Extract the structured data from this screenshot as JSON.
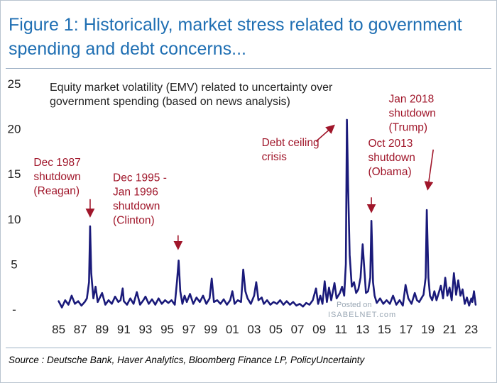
{
  "figure": {
    "title": "Figure 1: Historically, market stress related to government\nspending and debt concerns...",
    "source": "Source : Deutsche Bank, Haver Analytics, Bloomberg Finance LP, PolicyUncertainty",
    "watermark": {
      "posted": "Posted on",
      "site": "ISABELNET.com"
    }
  },
  "colors": {
    "title": "#1f6fb3",
    "series": "#1a1a7a",
    "annotation": "#a0162a",
    "rule": "#9fb2c6"
  },
  "chart_data": {
    "type": "line",
    "subtitle": "Equity market volatility (EMV) related to uncertainty over\ngovernment spending (based on news analysis)",
    "ylim": [
      0,
      25
    ],
    "yticks": [
      "-",
      "5",
      "10",
      "15",
      "20",
      "25"
    ],
    "ytick_values": [
      0,
      5,
      10,
      15,
      20,
      25
    ],
    "xlim": [
      1984.7,
      2023.8
    ],
    "xtick_labels": [
      "85",
      "87",
      "89",
      "91",
      "93",
      "95",
      "97",
      "99",
      "01",
      "03",
      "05",
      "07",
      "09",
      "11",
      "13",
      "15",
      "17",
      "19",
      "21",
      "23"
    ],
    "xtick_values": [
      1985,
      1987,
      1989,
      1991,
      1993,
      1995,
      1997,
      1999,
      2001,
      2003,
      2005,
      2007,
      2009,
      2011,
      2013,
      2015,
      2017,
      2019,
      2021,
      2023
    ],
    "grid": false,
    "legend": "none",
    "series": [
      {
        "name": "EMV government spending",
        "points": [
          [
            1985.0,
            0.9
          ],
          [
            1985.3,
            0.2
          ],
          [
            1985.6,
            1.0
          ],
          [
            1985.9,
            0.5
          ],
          [
            1986.2,
            1.5
          ],
          [
            1986.5,
            0.6
          ],
          [
            1986.8,
            0.9
          ],
          [
            1987.1,
            0.4
          ],
          [
            1987.4,
            0.8
          ],
          [
            1987.6,
            1.2
          ],
          [
            1987.8,
            3.0
          ],
          [
            1987.9,
            9.2
          ],
          [
            1988.0,
            4.0
          ],
          [
            1988.2,
            1.2
          ],
          [
            1988.4,
            2.5
          ],
          [
            1988.6,
            0.8
          ],
          [
            1988.8,
            1.3
          ],
          [
            1989.0,
            1.8
          ],
          [
            1989.3,
            0.5
          ],
          [
            1989.6,
            1.0
          ],
          [
            1989.9,
            0.6
          ],
          [
            1990.2,
            1.4
          ],
          [
            1990.5,
            0.8
          ],
          [
            1990.7,
            1.0
          ],
          [
            1990.9,
            2.3
          ],
          [
            1991.0,
            0.9
          ],
          [
            1991.3,
            0.5
          ],
          [
            1991.6,
            1.2
          ],
          [
            1991.9,
            0.6
          ],
          [
            1992.2,
            1.9
          ],
          [
            1992.5,
            0.5
          ],
          [
            1992.8,
            1.0
          ],
          [
            1993.0,
            1.4
          ],
          [
            1993.3,
            0.6
          ],
          [
            1993.6,
            1.1
          ],
          [
            1993.9,
            0.5
          ],
          [
            1994.2,
            1.2
          ],
          [
            1994.5,
            0.6
          ],
          [
            1994.8,
            1.0
          ],
          [
            1995.1,
            0.7
          ],
          [
            1995.4,
            1.0
          ],
          [
            1995.7,
            0.5
          ],
          [
            1995.9,
            3.1
          ],
          [
            1996.05,
            5.4
          ],
          [
            1996.2,
            2.0
          ],
          [
            1996.4,
            0.6
          ],
          [
            1996.6,
            1.5
          ],
          [
            1996.8,
            0.8
          ],
          [
            1997.1,
            1.7
          ],
          [
            1997.4,
            0.6
          ],
          [
            1997.7,
            1.3
          ],
          [
            1998.0,
            0.8
          ],
          [
            1998.3,
            1.5
          ],
          [
            1998.6,
            0.6
          ],
          [
            1998.9,
            1.2
          ],
          [
            1999.1,
            3.4
          ],
          [
            1999.3,
            0.8
          ],
          [
            1999.6,
            1.0
          ],
          [
            1999.9,
            0.6
          ],
          [
            2000.2,
            1.1
          ],
          [
            2000.5,
            0.5
          ],
          [
            2000.8,
            1.0
          ],
          [
            2001.0,
            2.0
          ],
          [
            2001.2,
            0.6
          ],
          [
            2001.5,
            1.0
          ],
          [
            2001.8,
            0.8
          ],
          [
            2002.0,
            4.4
          ],
          [
            2002.2,
            2.0
          ],
          [
            2002.4,
            1.2
          ],
          [
            2002.7,
            0.6
          ],
          [
            2003.0,
            1.5
          ],
          [
            2003.2,
            3.0
          ],
          [
            2003.4,
            1.0
          ],
          [
            2003.7,
            1.3
          ],
          [
            2003.9,
            0.6
          ],
          [
            2004.2,
            1.0
          ],
          [
            2004.5,
            0.5
          ],
          [
            2004.8,
            0.8
          ],
          [
            2005.1,
            0.6
          ],
          [
            2005.4,
            1.0
          ],
          [
            2005.7,
            0.5
          ],
          [
            2006.0,
            0.9
          ],
          [
            2006.3,
            0.5
          ],
          [
            2006.6,
            0.8
          ],
          [
            2006.9,
            0.4
          ],
          [
            2007.2,
            0.6
          ],
          [
            2007.5,
            0.3
          ],
          [
            2007.8,
            0.7
          ],
          [
            2008.1,
            0.5
          ],
          [
            2008.4,
            1.0
          ],
          [
            2008.7,
            2.3
          ],
          [
            2008.9,
            0.6
          ],
          [
            2009.1,
            1.5
          ],
          [
            2009.3,
            0.6
          ],
          [
            2009.5,
            3.1
          ],
          [
            2009.7,
            0.8
          ],
          [
            2009.9,
            2.4
          ],
          [
            2010.1,
            1.0
          ],
          [
            2010.4,
            2.9
          ],
          [
            2010.6,
            1.2
          ],
          [
            2010.9,
            1.8
          ],
          [
            2011.1,
            2.5
          ],
          [
            2011.3,
            1.5
          ],
          [
            2011.45,
            5.0
          ],
          [
            2011.55,
            21.0
          ],
          [
            2011.65,
            14.0
          ],
          [
            2011.8,
            6.0
          ],
          [
            2012.0,
            2.5
          ],
          [
            2012.2,
            3.0
          ],
          [
            2012.4,
            1.8
          ],
          [
            2012.6,
            2.2
          ],
          [
            2012.8,
            3.5
          ],
          [
            2013.0,
            7.2
          ],
          [
            2013.15,
            4.5
          ],
          [
            2013.3,
            1.8
          ],
          [
            2013.5,
            2.0
          ],
          [
            2013.7,
            3.5
          ],
          [
            2013.8,
            9.8
          ],
          [
            2013.95,
            3.0
          ],
          [
            2014.1,
            1.5
          ],
          [
            2014.3,
            0.7
          ],
          [
            2014.6,
            1.2
          ],
          [
            2014.9,
            0.6
          ],
          [
            2015.2,
            1.0
          ],
          [
            2015.5,
            0.6
          ],
          [
            2015.8,
            1.5
          ],
          [
            2016.1,
            0.5
          ],
          [
            2016.4,
            1.0
          ],
          [
            2016.7,
            0.4
          ],
          [
            2016.95,
            2.7
          ],
          [
            2017.2,
            1.2
          ],
          [
            2017.5,
            0.6
          ],
          [
            2017.8,
            1.8
          ],
          [
            2018.0,
            1.0
          ],
          [
            2018.2,
            0.8
          ],
          [
            2018.4,
            1.2
          ],
          [
            2018.6,
            1.6
          ],
          [
            2018.8,
            3.5
          ],
          [
            2018.9,
            11.0
          ],
          [
            2019.05,
            3.5
          ],
          [
            2019.2,
            1.5
          ],
          [
            2019.4,
            1.0
          ],
          [
            2019.6,
            2.0
          ],
          [
            2019.8,
            1.0
          ],
          [
            2020.0,
            1.8
          ],
          [
            2020.2,
            2.6
          ],
          [
            2020.4,
            1.2
          ],
          [
            2020.6,
            3.5
          ],
          [
            2020.8,
            1.5
          ],
          [
            2021.0,
            2.4
          ],
          [
            2021.2,
            1.0
          ],
          [
            2021.4,
            4.0
          ],
          [
            2021.6,
            1.6
          ],
          [
            2021.8,
            3.2
          ],
          [
            2022.0,
            1.5
          ],
          [
            2022.2,
            2.2
          ],
          [
            2022.4,
            0.6
          ],
          [
            2022.6,
            1.3
          ],
          [
            2022.8,
            0.4
          ],
          [
            2023.0,
            1.2
          ],
          [
            2023.1,
            0.8
          ],
          [
            2023.25,
            2.0
          ],
          [
            2023.4,
            0.5
          ]
        ]
      }
    ],
    "annotations": [
      {
        "text": "Dec 1987\nshutdown\n(Reagan)",
        "tx": 1982.7,
        "ty": 15.9,
        "ax": 1987.9,
        "ay": 10.4,
        "ax0": 1987.9,
        "ay0": 12.2
      },
      {
        "text": "Dec 1995 -\nJan 1996\nshutdown\n(Clinton)",
        "tx": 1990.0,
        "ty": 14.2,
        "ax": 1996.0,
        "ay": 6.8,
        "ax0": 1996.0,
        "ay0": 8.2
      },
      {
        "text": "Debt ceiling\ncrisis",
        "tx": 2003.7,
        "ty": 18.1,
        "ax": 2010.3,
        "ay": 20.3,
        "ax0": 2008.7,
        "ay0": 18.6
      },
      {
        "text": "Oct 2013\nshutdown\n(Obama)",
        "tx": 2013.5,
        "ty": 18.0,
        "ax": 2013.8,
        "ay": 10.9,
        "ax0": 2013.8,
        "ay0": 12.4
      },
      {
        "text": "Jan 2018\nshutdown\n(Trump)",
        "tx": 2015.4,
        "ty": 22.9,
        "ax": 2019.0,
        "ay": 13.4,
        "ax0": 2019.5,
        "ay0": 17.7
      }
    ]
  }
}
